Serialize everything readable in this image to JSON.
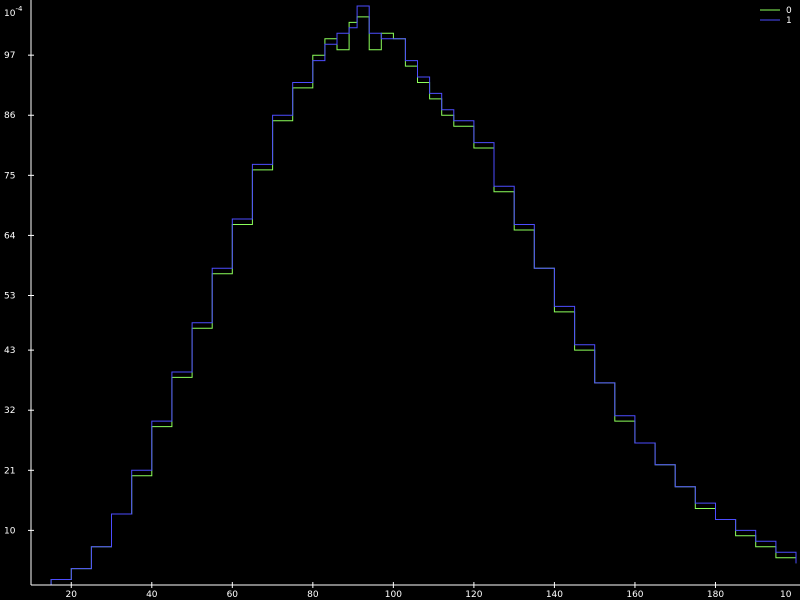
{
  "chart_data": {
    "type": "line",
    "line_style": "step",
    "background": "#000000",
    "axis_color": "#ffffff",
    "ylabel_multiplier": "10",
    "ylabel_multiplier_exponent": "-4",
    "corner_x_label": "10",
    "xlim": [
      10,
      200
    ],
    "ylim": [
      0,
      106
    ],
    "xticks": [
      20,
      40,
      60,
      80,
      100,
      120,
      140,
      160,
      180
    ],
    "xtick_labels": [
      "20",
      "40",
      "60",
      "80",
      "100",
      "120",
      "140",
      "160",
      "180"
    ],
    "yticks": [
      10,
      21,
      32,
      43,
      53,
      64,
      75,
      86,
      97
    ],
    "ytick_labels": [
      "10",
      "21",
      "32",
      "43",
      "53",
      "64",
      "75",
      "86",
      "97"
    ],
    "legend_position": "top-right",
    "series": [
      {
        "name": "0",
        "color": "#8cff5a",
        "x": [
          10,
          15,
          20,
          25,
          30,
          35,
          40,
          45,
          50,
          55,
          60,
          65,
          70,
          75,
          80,
          83,
          86,
          89,
          91,
          94,
          97,
          100,
          103,
          106,
          109,
          112,
          115,
          120,
          125,
          130,
          135,
          140,
          145,
          150,
          155,
          160,
          165,
          170,
          175,
          180,
          185,
          190,
          195,
          200
        ],
        "y": [
          0,
          1,
          3,
          7,
          13,
          20,
          29,
          38,
          47,
          57,
          66,
          76,
          85,
          91,
          97,
          100,
          98,
          103,
          104,
          98,
          101,
          100,
          95,
          92,
          89,
          86,
          84,
          80,
          72,
          65,
          58,
          50,
          43,
          37,
          30,
          26,
          22,
          18,
          14,
          12,
          9,
          7,
          5,
          4
        ]
      },
      {
        "name": "1",
        "color": "#4d4dff",
        "x": [
          10,
          15,
          20,
          25,
          30,
          35,
          40,
          45,
          50,
          55,
          60,
          65,
          70,
          75,
          80,
          83,
          86,
          89,
          91,
          94,
          97,
          100,
          103,
          106,
          109,
          112,
          115,
          120,
          125,
          130,
          135,
          140,
          145,
          150,
          155,
          160,
          165,
          170,
          175,
          180,
          185,
          190,
          195,
          200
        ],
        "y": [
          0,
          1,
          3,
          7,
          13,
          21,
          30,
          39,
          48,
          58,
          67,
          77,
          86,
          92,
          96,
          99,
          101,
          102,
          106,
          101,
          100,
          100,
          96,
          93,
          90,
          87,
          85,
          81,
          73,
          66,
          58,
          51,
          44,
          37,
          31,
          26,
          22,
          18,
          15,
          12,
          10,
          8,
          6,
          4
        ]
      }
    ]
  }
}
